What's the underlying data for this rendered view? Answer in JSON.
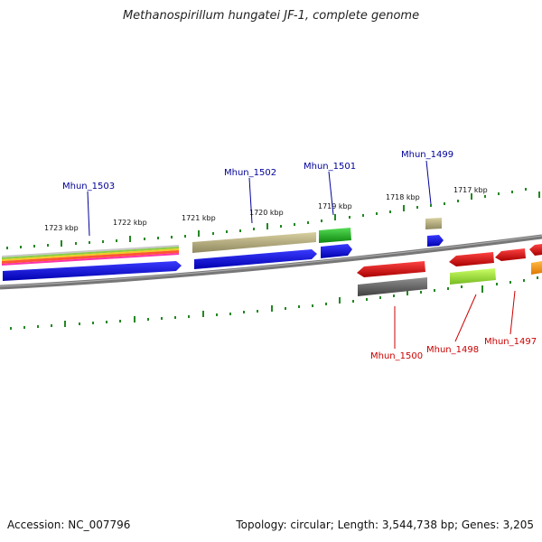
{
  "title": "Methanospirillum hungatei JF-1, complete genome",
  "footer": {
    "accession": "Accession: NC_007796",
    "topology": "Topology: circular; Length: 3,544,738 bp; Genes: 3,205"
  },
  "scale_labels": [
    "1723 kbp",
    "1722 kbp",
    "1721 kbp",
    "1720 kbp",
    "1719 kbp",
    "1718 kbp",
    "1717 kbp"
  ],
  "genes_forward": [
    {
      "label": "Mhun_1503",
      "color": "#1010d8"
    },
    {
      "label": "Mhun_1502",
      "color": "#b8b078"
    },
    {
      "label": "Mhun_1501",
      "color": "#22bb22"
    },
    {
      "label": "Mhun_1499",
      "color": "#b8b078"
    }
  ],
  "genes_reverse": [
    {
      "label": "Mhun_1500",
      "color": "#606060"
    },
    {
      "label": "Mhun_1498",
      "color": "#99ee33"
    },
    {
      "label": "Mhun_1497",
      "color": "#ee0000"
    }
  ],
  "colors": {
    "forward_label": "#000099",
    "reverse_label": "#cc0000",
    "tick": "#228822",
    "backbone": "#777777",
    "red_feature": "#ee0000",
    "orange_feature": "#ff9900"
  }
}
